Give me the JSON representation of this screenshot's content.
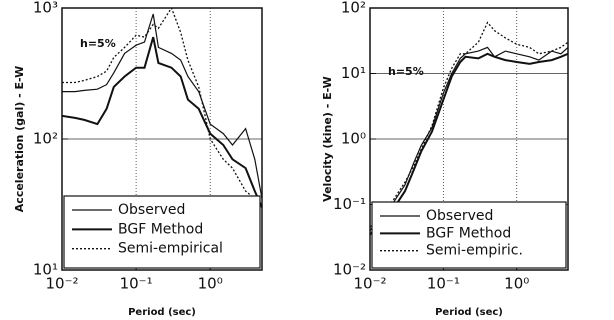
{
  "chart_data": [
    {
      "type": "line",
      "y_label": "Acceleration (gal) - E-W",
      "x_label": "Period (sec)",
      "annotation": "h=5%",
      "log_x": true,
      "log_y": true,
      "grid": true,
      "x": [
        0.01,
        0.015,
        0.02,
        0.03,
        0.04,
        0.05,
        0.07,
        0.1,
        0.13,
        0.17,
        0.2,
        0.3,
        0.4,
        0.5,
        0.7,
        1,
        1.5,
        2,
        3,
        4,
        5
      ],
      "xlim": [
        0.01,
        5
      ],
      "ylim": [
        10,
        1000
      ],
      "xticks": [
        {
          "value": 0.01,
          "label": "10⁻²"
        },
        {
          "value": 0.1,
          "label": "10⁻¹"
        },
        {
          "value": 1,
          "label": "10⁰"
        }
      ],
      "yticks": [
        {
          "value": 10,
          "label": "10¹"
        },
        {
          "value": 100,
          "label": "10²"
        },
        {
          "value": 1000,
          "label": "10³"
        }
      ],
      "series": [
        {
          "name": "Observed",
          "color": "#111111",
          "width": 1.2,
          "dash": "none",
          "values": [
            230,
            230,
            235,
            240,
            260,
            320,
            450,
            520,
            550,
            900,
            500,
            450,
            400,
            300,
            230,
            130,
            110,
            90,
            120,
            70,
            35
          ]
        },
        {
          "name": "BGF Method",
          "color": "#111111",
          "width": 2,
          "dash": "none",
          "values": [
            150,
            145,
            140,
            130,
            170,
            250,
            300,
            350,
            350,
            600,
            380,
            350,
            300,
            200,
            170,
            110,
            90,
            70,
            60,
            40,
            30
          ]
        },
        {
          "name": "Semi-empirical",
          "color": "#111111",
          "width": 1.3,
          "dash": "2,2",
          "values": [
            270,
            270,
            280,
            300,
            330,
            420,
            500,
            620,
            600,
            750,
            700,
            1000,
            650,
            400,
            250,
            100,
            70,
            60,
            40,
            35,
            30
          ]
        }
      ]
    },
    {
      "type": "line",
      "y_label": "Velocity (kine) - E-W",
      "x_label": "Period (sec)",
      "annotation": "h=5%",
      "log_x": true,
      "log_y": true,
      "grid": true,
      "x": [
        0.01,
        0.015,
        0.02,
        0.03,
        0.04,
        0.05,
        0.07,
        0.1,
        0.13,
        0.17,
        0.2,
        0.3,
        0.4,
        0.5,
        0.7,
        1,
        1.5,
        2,
        3,
        4,
        5
      ],
      "xlim": [
        0.01,
        5
      ],
      "ylim": [
        0.01,
        100
      ],
      "xticks": [
        {
          "value": 0.01,
          "label": "10⁻²"
        },
        {
          "value": 0.1,
          "label": "10⁻¹"
        },
        {
          "value": 1,
          "label": "10⁰"
        }
      ],
      "yticks": [
        {
          "value": 0.01,
          "label": "10⁻²"
        },
        {
          "value": 0.1,
          "label": "10⁻¹"
        },
        {
          "value": 1,
          "label": "10⁰"
        },
        {
          "value": 10,
          "label": "10¹"
        },
        {
          "value": 100,
          "label": "10²"
        }
      ],
      "series": [
        {
          "name": "Observed",
          "color": "#111111",
          "width": 1.2,
          "dash": "none",
          "values": [
            0.04,
            0.07,
            0.1,
            0.2,
            0.45,
            0.8,
            1.5,
            5,
            10,
            17,
            20,
            22,
            25,
            18,
            22,
            20,
            18,
            16,
            22,
            20,
            25
          ]
        },
        {
          "name": "BGF Method",
          "color": "#111111",
          "width": 2,
          "dash": "none",
          "values": [
            0.035,
            0.055,
            0.08,
            0.16,
            0.35,
            0.65,
            1.3,
            4,
            9,
            15,
            18,
            17,
            20,
            18,
            16,
            15,
            14,
            15,
            16,
            18,
            20
          ]
        },
        {
          "name": "Semi-empiric.",
          "color": "#111111",
          "width": 1.3,
          "dash": "2,2",
          "values": [
            0.045,
            0.075,
            0.11,
            0.22,
            0.4,
            0.7,
            1.6,
            6,
            12,
            20,
            20,
            30,
            60,
            45,
            35,
            28,
            25,
            20,
            22,
            25,
            30
          ]
        }
      ]
    }
  ]
}
